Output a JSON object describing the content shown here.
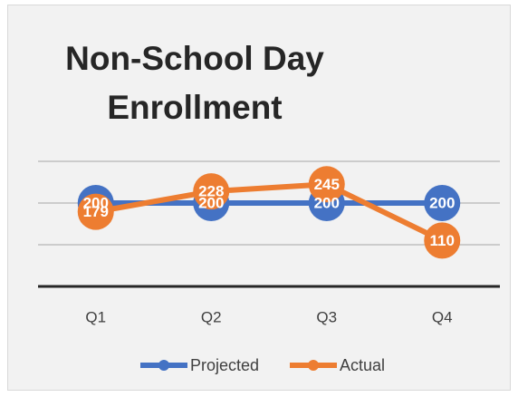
{
  "chart_data": {
    "type": "line",
    "title": "Non-School Day Enrollment",
    "categories": [
      "Q1",
      "Q2",
      "Q3",
      "Q4"
    ],
    "series": [
      {
        "name": "Projected",
        "color": "#4472c4",
        "values": [
          200,
          200,
          200,
          200
        ]
      },
      {
        "name": "Actual",
        "color": "#ed7d31",
        "values": [
          179,
          228,
          245,
          110
        ]
      }
    ],
    "ylim": [
      0,
      300
    ],
    "yticks": [
      0,
      100,
      200,
      300
    ],
    "grid": true,
    "legend": "bottom"
  }
}
